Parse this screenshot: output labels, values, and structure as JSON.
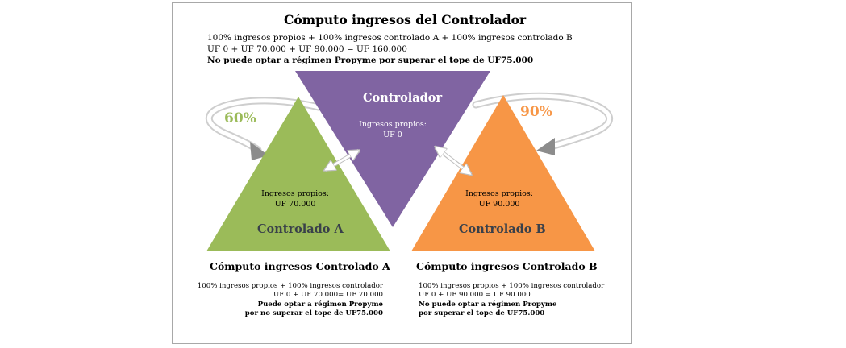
{
  "title": "Cómputo ingresos del Controlador",
  "controller_lines": [
    "100% ingresos propios + 100% ingresos controlado A + 100% ingresos controlado B",
    "UF 0 + UF 70.000 + UF 90.000 = UF 160.000",
    "No puede optar a régimen Propyme por superar el tope de UF75.000"
  ],
  "nodes": {
    "controlador": {
      "name": "Controlador",
      "income_label": "Ingresos propios:",
      "income_value": "UF 0",
      "color": "#8064a2"
    },
    "controlado_a": {
      "name": "Controlado A",
      "income_label": "Ingresos propios:",
      "income_value": "UF 70.000",
      "color": "#9bbb59"
    },
    "controlado_b": {
      "name": "Controlado B",
      "income_label": "Ingresos propios:",
      "income_value": "UF 90.000",
      "color": "#f79646"
    }
  },
  "percentages": {
    "a": {
      "value": "60%",
      "color": "#9bbb59"
    },
    "b": {
      "value": "90%",
      "color": "#f79646"
    }
  },
  "section_a": {
    "title": "Cómputo ingresos  Controlado  A",
    "lines": [
      "100% ingresos propios + 100% ingresos controlador",
      "UF 0 + UF 70.000= UF 70.000",
      "Puede optar a régimen Propyme",
      "por no superar el tope de UF75.000"
    ]
  },
  "section_b": {
    "title": "Cómputo ingresos  Controlado  B",
    "lines": [
      "100% ingresos propios + 100% ingresos controlador",
      "UF 0 + UF 90.000 = UF 90.000",
      "No puede optar a régimen Propyme",
      "por superar el tope de UF75.000"
    ]
  }
}
